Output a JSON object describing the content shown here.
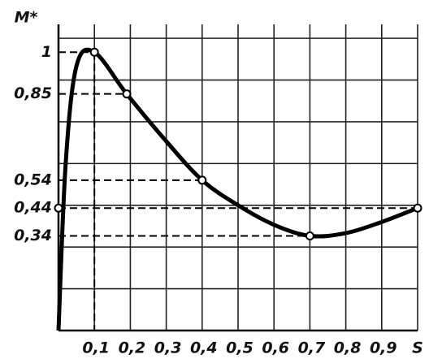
{
  "chart_data": {
    "type": "line",
    "y_label": "M*",
    "x_label": "S",
    "x": [
      0,
      0.02,
      0.05,
      0.1,
      0.19,
      0.3,
      0.4,
      0.5,
      0.6,
      0.7,
      0.8,
      0.9,
      1.0
    ],
    "series": [
      {
        "color": "#000000",
        "values": [
          0,
          0.6,
          0.95,
          1,
          0.85,
          0.68,
          0.54,
          0.45,
          0.38,
          0.34,
          0.35,
          0.39,
          0.44
        ]
      }
    ],
    "markers": {
      "x": [
        0.1,
        0.19,
        0.4,
        0.7,
        1.0,
        0
      ],
      "values": [
        1,
        0.85,
        0.54,
        0.34,
        0.44,
        0.44
      ]
    },
    "xlim": [
      0,
      1
    ],
    "ylim": [
      0,
      1.1
    ],
    "xticks": [
      {
        "value": 0.1,
        "label": "0,1"
      },
      {
        "value": 0.2,
        "label": "0,2"
      },
      {
        "value": 0.3,
        "label": "0,3"
      },
      {
        "value": 0.4,
        "label": "0,4"
      },
      {
        "value": 0.5,
        "label": "0,5"
      },
      {
        "value": 0.6,
        "label": "0,6"
      },
      {
        "value": 0.7,
        "label": "0,7"
      },
      {
        "value": 0.8,
        "label": "0,8"
      },
      {
        "value": 0.9,
        "label": "0,9"
      }
    ],
    "yticks": [
      1,
      {
        "value": 0.85,
        "label": "0,85"
      },
      {
        "value": 0.54,
        "label": "0,54"
      },
      {
        "value": 0.44,
        "label": "0,44"
      },
      {
        "value": 0.34,
        "label": "0,34"
      }
    ],
    "ygrid": [
      0.15,
      0.3,
      0.45,
      0.6,
      0.75,
      0.9,
      1.05
    ],
    "grid": true
  }
}
